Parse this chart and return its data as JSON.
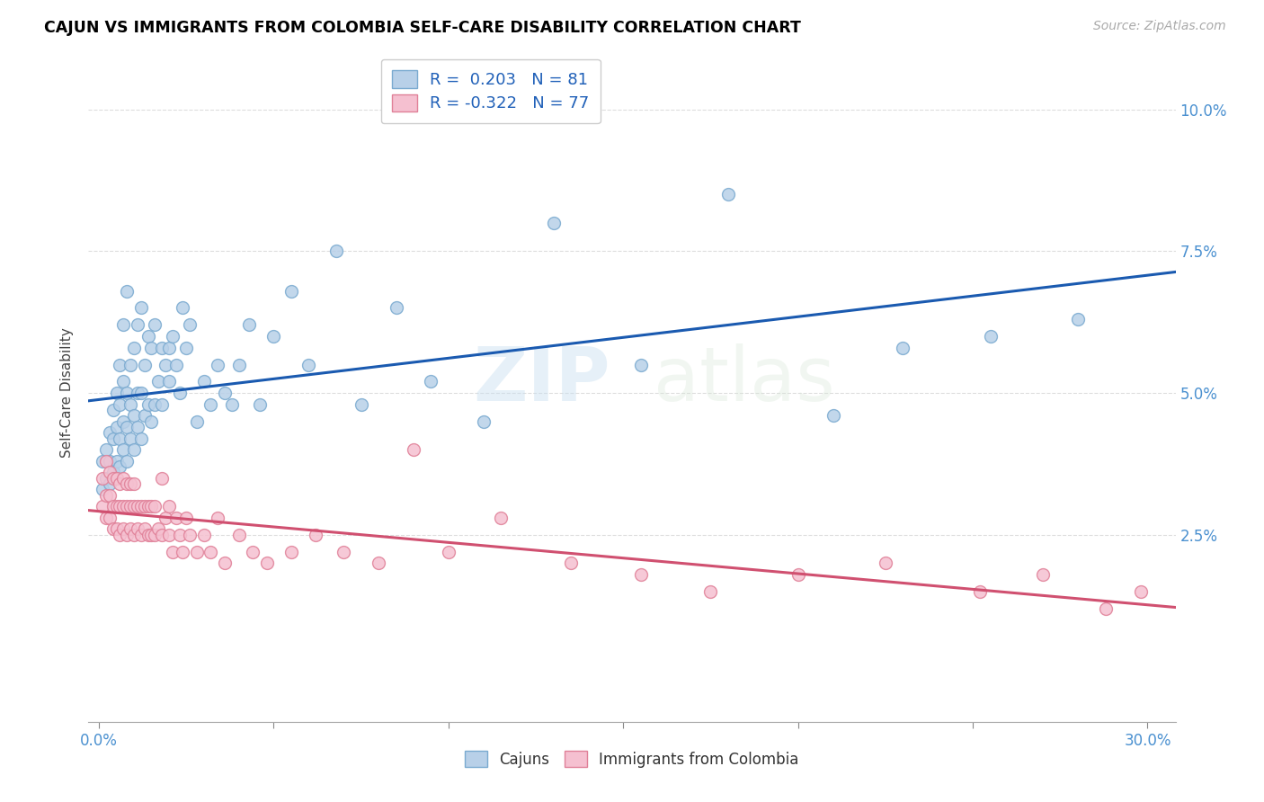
{
  "title": "CAJUN VS IMMIGRANTS FROM COLOMBIA SELF-CARE DISABILITY CORRELATION CHART",
  "source": "Source: ZipAtlas.com",
  "ylabel_label": "Self-Care Disability",
  "xlim": [
    -0.003,
    0.308
  ],
  "ylim": [
    -0.008,
    0.108
  ],
  "xtick_positions": [
    0.0,
    0.3
  ],
  "xtick_labels": [
    "0.0%",
    "30.0%"
  ],
  "ytick_positions": [
    0.025,
    0.05,
    0.075,
    0.1
  ],
  "ytick_labels": [
    "2.5%",
    "5.0%",
    "7.5%",
    "10.0%"
  ],
  "legend_r1_val": "0.203",
  "legend_n1_val": "81",
  "legend_r2_val": "-0.322",
  "legend_n2_val": "77",
  "cajun_color": "#b8d0e8",
  "cajun_edge": "#7aaad0",
  "colombia_color": "#f5c0d0",
  "colombia_edge": "#e08098",
  "trendline_cajun": "#1a5ab0",
  "trendline_colombia": "#d05070",
  "watermark": "ZIPatlas",
  "cajun_x": [
    0.001,
    0.001,
    0.002,
    0.002,
    0.003,
    0.003,
    0.003,
    0.004,
    0.004,
    0.004,
    0.005,
    0.005,
    0.005,
    0.006,
    0.006,
    0.006,
    0.006,
    0.007,
    0.007,
    0.007,
    0.007,
    0.008,
    0.008,
    0.008,
    0.008,
    0.009,
    0.009,
    0.009,
    0.01,
    0.01,
    0.01,
    0.011,
    0.011,
    0.011,
    0.012,
    0.012,
    0.012,
    0.013,
    0.013,
    0.014,
    0.014,
    0.015,
    0.015,
    0.016,
    0.016,
    0.017,
    0.018,
    0.018,
    0.019,
    0.02,
    0.02,
    0.021,
    0.022,
    0.023,
    0.024,
    0.025,
    0.026,
    0.028,
    0.03,
    0.032,
    0.034,
    0.036,
    0.038,
    0.04,
    0.043,
    0.046,
    0.05,
    0.055,
    0.06,
    0.068,
    0.075,
    0.085,
    0.095,
    0.11,
    0.13,
    0.155,
    0.18,
    0.21,
    0.23,
    0.255,
    0.28
  ],
  "cajun_y": [
    0.033,
    0.038,
    0.035,
    0.04,
    0.034,
    0.038,
    0.043,
    0.036,
    0.042,
    0.047,
    0.038,
    0.044,
    0.05,
    0.037,
    0.042,
    0.048,
    0.055,
    0.04,
    0.045,
    0.052,
    0.062,
    0.038,
    0.044,
    0.05,
    0.068,
    0.042,
    0.048,
    0.055,
    0.04,
    0.046,
    0.058,
    0.044,
    0.05,
    0.062,
    0.042,
    0.05,
    0.065,
    0.046,
    0.055,
    0.048,
    0.06,
    0.045,
    0.058,
    0.048,
    0.062,
    0.052,
    0.048,
    0.058,
    0.055,
    0.052,
    0.058,
    0.06,
    0.055,
    0.05,
    0.065,
    0.058,
    0.062,
    0.045,
    0.052,
    0.048,
    0.055,
    0.05,
    0.048,
    0.055,
    0.062,
    0.048,
    0.06,
    0.068,
    0.055,
    0.075,
    0.048,
    0.065,
    0.052,
    0.045,
    0.08,
    0.055,
    0.085,
    0.046,
    0.058,
    0.06,
    0.063
  ],
  "colombia_x": [
    0.001,
    0.001,
    0.002,
    0.002,
    0.002,
    0.003,
    0.003,
    0.003,
    0.004,
    0.004,
    0.004,
    0.005,
    0.005,
    0.005,
    0.006,
    0.006,
    0.006,
    0.007,
    0.007,
    0.007,
    0.008,
    0.008,
    0.008,
    0.009,
    0.009,
    0.009,
    0.01,
    0.01,
    0.01,
    0.011,
    0.011,
    0.012,
    0.012,
    0.013,
    0.013,
    0.014,
    0.014,
    0.015,
    0.015,
    0.016,
    0.016,
    0.017,
    0.018,
    0.018,
    0.019,
    0.02,
    0.02,
    0.021,
    0.022,
    0.023,
    0.024,
    0.025,
    0.026,
    0.028,
    0.03,
    0.032,
    0.034,
    0.036,
    0.04,
    0.044,
    0.048,
    0.055,
    0.062,
    0.07,
    0.08,
    0.09,
    0.1,
    0.115,
    0.135,
    0.155,
    0.175,
    0.2,
    0.225,
    0.252,
    0.27,
    0.288,
    0.298
  ],
  "colombia_y": [
    0.03,
    0.035,
    0.028,
    0.032,
    0.038,
    0.028,
    0.032,
    0.036,
    0.026,
    0.03,
    0.035,
    0.026,
    0.03,
    0.035,
    0.025,
    0.03,
    0.034,
    0.026,
    0.03,
    0.035,
    0.025,
    0.03,
    0.034,
    0.026,
    0.03,
    0.034,
    0.025,
    0.03,
    0.034,
    0.026,
    0.03,
    0.025,
    0.03,
    0.026,
    0.03,
    0.025,
    0.03,
    0.025,
    0.03,
    0.025,
    0.03,
    0.026,
    0.035,
    0.025,
    0.028,
    0.025,
    0.03,
    0.022,
    0.028,
    0.025,
    0.022,
    0.028,
    0.025,
    0.022,
    0.025,
    0.022,
    0.028,
    0.02,
    0.025,
    0.022,
    0.02,
    0.022,
    0.025,
    0.022,
    0.02,
    0.04,
    0.022,
    0.028,
    0.02,
    0.018,
    0.015,
    0.018,
    0.02,
    0.015,
    0.018,
    0.012,
    0.015
  ],
  "bottom_legend_labels": [
    "Cajuns",
    "Immigrants from Colombia"
  ]
}
